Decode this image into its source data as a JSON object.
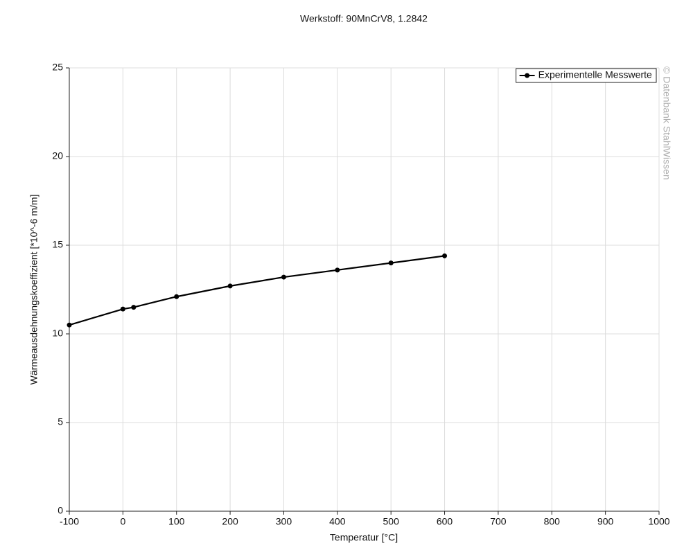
{
  "chart_data": {
    "type": "line",
    "title": "Werkstoff: 90MnCrV8, 1.2842",
    "x_label": "Temperatur [°C]",
    "y_label": "Wärmeausdehnungskoeffizient [*10^-6 m/m]",
    "annotation": "© Datenbank StahlWissen",
    "x": [
      -100,
      0,
      20,
      100,
      200,
      300,
      400,
      500,
      600
    ],
    "series": [
      {
        "name": "Experimentelle Messwerte",
        "color": "#000000",
        "values": [
          10.5,
          11.4,
          11.5,
          12.1,
          12.7,
          13.2,
          13.6,
          14.0,
          14.4
        ]
      }
    ],
    "xlim": [
      -100,
      1000
    ],
    "xticks": [
      -100,
      0,
      100,
      200,
      300,
      400,
      500,
      600,
      700,
      800,
      900,
      1000
    ],
    "ylim": [
      0,
      25
    ],
    "yticks": [
      0,
      5,
      10,
      15,
      20,
      25
    ],
    "grid": true,
    "legend": "upper right"
  }
}
